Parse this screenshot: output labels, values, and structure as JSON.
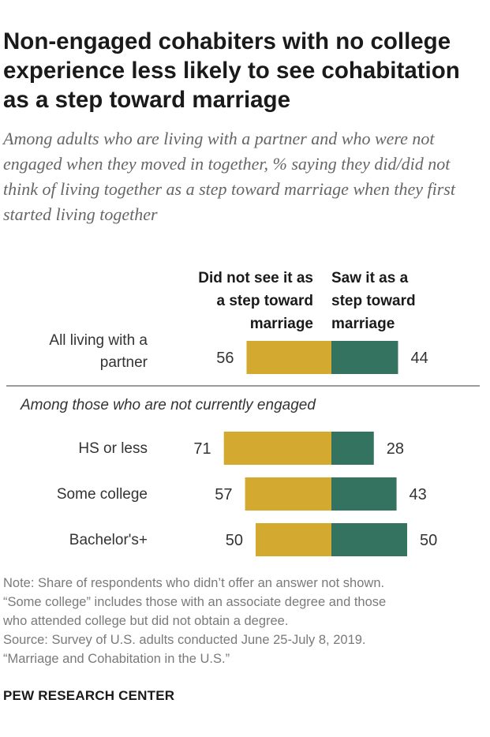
{
  "title": "Non-engaged cohabiters with no college experience less likely to see cohabitation as a step toward marriage",
  "subtitle": "Among adults who are living with a partner and who were not engaged when they moved in together, % saying they did/did not think of living together as a step toward marriage when they first started living together",
  "chart_data": {
    "type": "bar",
    "orientation": "horizontal-diverging",
    "series": [
      {
        "name": "Did not see it as a step toward marriage",
        "color": "#d4a92f",
        "values": [
          56,
          71,
          57,
          50
        ]
      },
      {
        "name": "Saw it as a step toward marriage",
        "color": "#33735f",
        "values": [
          44,
          28,
          43,
          50
        ]
      }
    ],
    "categories": [
      "All living with a partner",
      "HS or less",
      "Some college",
      "Bachelor's+"
    ],
    "section_label": "Among those who are not currently engaged",
    "units": "%"
  },
  "headers": {
    "neg_lines": [
      "Did not see it as",
      "a step toward",
      "marriage"
    ],
    "pos_lines": [
      "Saw it as a",
      "step toward",
      "marriage"
    ]
  },
  "labels": {
    "all_lines": [
      "All living with a",
      "partner"
    ],
    "hs": "HS or less",
    "some": "Some college",
    "ba": "Bachelor's+"
  },
  "note_lines": [
    "Note: Share of respondents who didn’t offer an answer not shown.",
    "“Some college” includes those with an associate degree and those",
    "who attended college but did not obtain a degree.",
    "Source: Survey of U.S. adults conducted June 25-July 8, 2019.",
    "“Marriage and Cohabitation in the U.S.”"
  ],
  "brand": "PEW RESEARCH CENTER"
}
